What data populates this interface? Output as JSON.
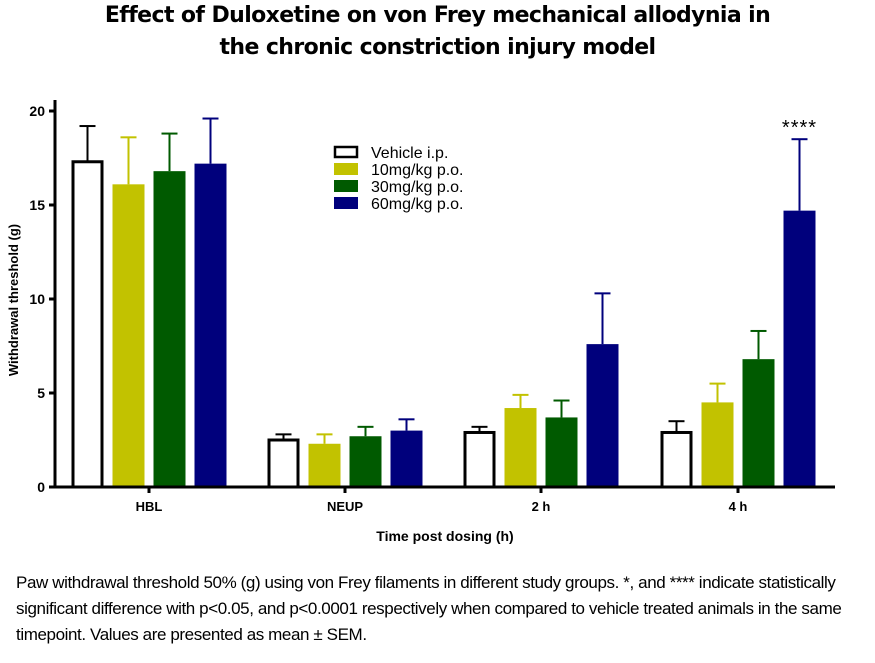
{
  "title": {
    "line1": "Effect of Duloxetine on von Frey mechanical allodynia in",
    "line2": "the chronic constriction injury model"
  },
  "caption": "Paw withdrawal threshold 50% (g) using von Frey filaments in different study groups. *,  and **** indicate statistically significant difference  with p<0.05, and p<0.0001 respectively when compared to vehicle treated animals in the same timepoint. Values are presented as mean ± SEM.",
  "chart_data": {
    "type": "bar",
    "title": "Effect of Duloxetine on von Frey mechanical allodynia in the chronic constriction injury model",
    "xlabel": "Time post dosing (h)",
    "ylabel": "Withdrawal threshold (g)",
    "ylim": [
      0,
      20
    ],
    "yticks": [
      0,
      5,
      10,
      15,
      20
    ],
    "grid": false,
    "legend_position": "upper center",
    "categories": [
      "HBL",
      "NEUP",
      "2 h",
      "4 h"
    ],
    "series": [
      {
        "name": "Vehicle i.p.",
        "color": "#ffffff",
        "outline": "#000000",
        "values": [
          17.3,
          2.5,
          2.9,
          2.9
        ],
        "sem": [
          1.9,
          0.3,
          0.3,
          0.6
        ]
      },
      {
        "name": "10mg/kg p.o.",
        "color": "#c2c200",
        "values": [
          16.1,
          2.3,
          4.2,
          4.5
        ],
        "sem": [
          2.5,
          0.5,
          0.7,
          1.0
        ]
      },
      {
        "name": "30mg/kg p.o.",
        "color": "#005a00",
        "values": [
          16.8,
          2.7,
          3.7,
          6.8
        ],
        "sem": [
          2.0,
          0.5,
          0.9,
          1.5
        ]
      },
      {
        "name": "60mg/kg p.o.",
        "color": "#00007c",
        "values": [
          17.2,
          3.0,
          7.6,
          14.7
        ],
        "sem": [
          2.4,
          0.6,
          2.7,
          3.8
        ]
      }
    ],
    "annotations": [
      {
        "category": "4 h",
        "series": "60mg/kg p.o.",
        "text": "****"
      }
    ]
  }
}
